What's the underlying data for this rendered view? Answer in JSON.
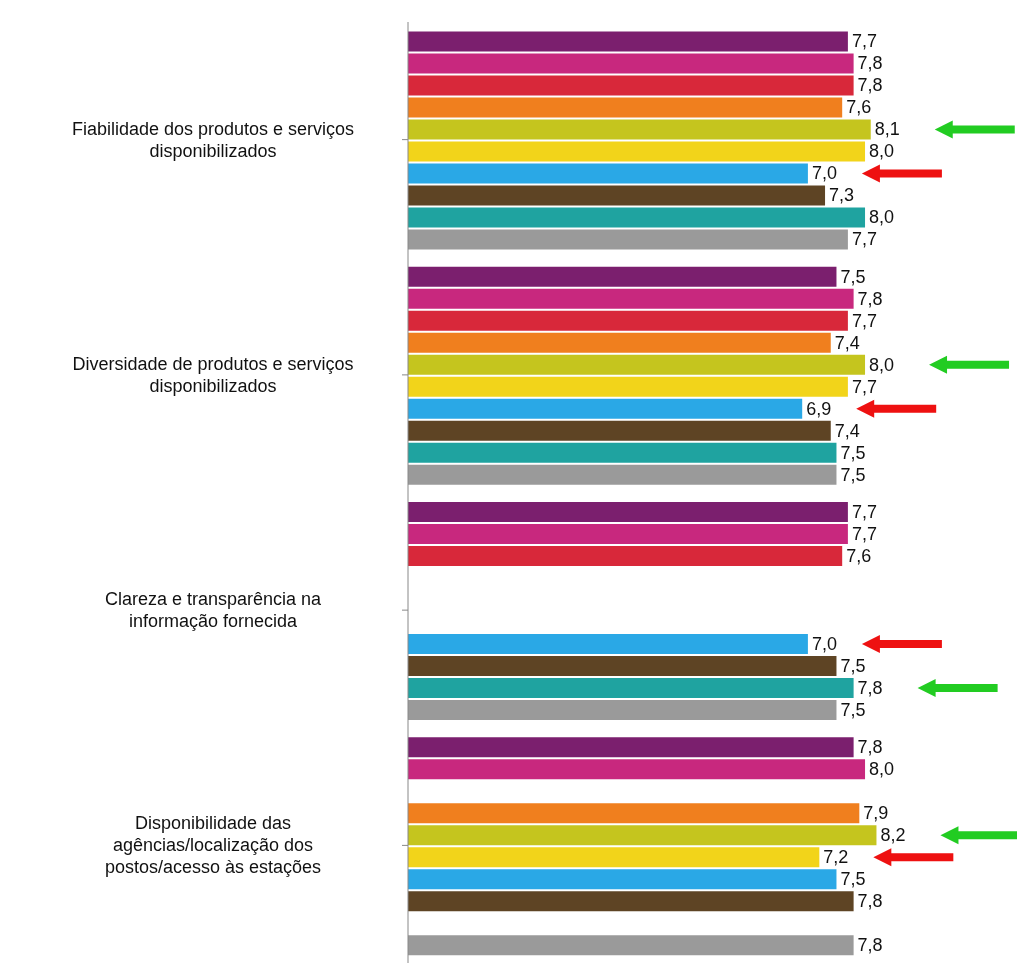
{
  "chart_data": {
    "type": "bar",
    "orientation": "horizontal",
    "categories": [
      "Fiabilidade dos produtos e serviços disponibilizados",
      "Diversidade de produtos e serviços disponibilizados",
      "Clareza e transparência na informação fornecida",
      "Disponibilidade das agências/localização dos postos/acesso às estações"
    ],
    "tick_labels": "y",
    "series": [
      {
        "color": "#7b1f6e",
        "values": [
          7.7,
          7.5,
          7.7,
          7.8
        ],
        "value_labels": [
          "7,7",
          "7,5",
          "7,7",
          "7,8"
        ]
      },
      {
        "color": "#c8287e",
        "values": [
          7.8,
          7.8,
          7.7,
          8.0
        ],
        "value_labels": [
          "7,8",
          "7,8",
          "7,7",
          "8,0"
        ]
      },
      {
        "color": "#d8283a",
        "values": [
          7.8,
          7.7,
          7.6,
          null
        ],
        "value_labels": [
          "7,8",
          "7,7",
          "7,6",
          null
        ]
      },
      {
        "color": "#f07f1e",
        "values": [
          7.6,
          7.4,
          null,
          7.9
        ],
        "value_labels": [
          "7,6",
          "7,4",
          null,
          "7,9"
        ]
      },
      {
        "color": "#c5c51e",
        "values": [
          8.1,
          8.0,
          null,
          8.2
        ],
        "value_labels": [
          "8,1",
          "8,0",
          null,
          "8,2"
        ]
      },
      {
        "color": "#f2d41a",
        "values": [
          8.0,
          7.7,
          null,
          7.2
        ],
        "value_labels": [
          "8,0",
          "7,7",
          null,
          "7,2"
        ]
      },
      {
        "color": "#2aa8e6",
        "values": [
          7.0,
          6.9,
          7.0,
          7.5
        ],
        "value_labels": [
          "7,0",
          "6,9",
          "7,0",
          "7,5"
        ]
      },
      {
        "color": "#5e4424",
        "values": [
          7.3,
          7.4,
          7.5,
          7.8
        ],
        "value_labels": [
          "7,3",
          "7,4",
          "7,5",
          "7,8"
        ]
      },
      {
        "color": "#1fa3a0",
        "values": [
          8.0,
          7.5,
          7.8,
          null
        ],
        "value_labels": [
          "8,0",
          "7,5",
          "7,8",
          null
        ]
      },
      {
        "color": "#9a9a9a",
        "values": [
          7.7,
          7.5,
          7.5,
          7.8
        ],
        "value_labels": [
          "7,7",
          "7,5",
          "7,5",
          "7,8"
        ]
      }
    ]
  }
}
